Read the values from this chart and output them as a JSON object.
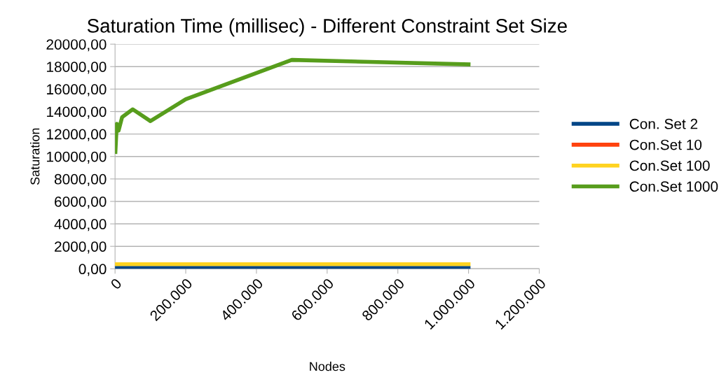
{
  "chart_data": {
    "type": "line",
    "title": "Saturation Time (millisec) - Different Constraint Set Size",
    "xlabel": "Nodes",
    "ylabel": "Saturation",
    "x": [
      1000,
      5000,
      10000,
      20000,
      50000,
      100000,
      200000,
      500000,
      1000000
    ],
    "series": [
      {
        "name": "Con. Set 2",
        "color": "#004586",
        "values": [
          60,
          60,
          60,
          60,
          60,
          60,
          60,
          60,
          60
        ]
      },
      {
        "name": "Con.Set 10",
        "color": "#ff420e",
        "values": [
          null,
          null,
          null,
          null,
          null,
          null,
          null,
          null,
          null
        ]
      },
      {
        "name": "Con.Set 100",
        "color": "#ffd320",
        "values": [
          400,
          400,
          400,
          400,
          400,
          400,
          400,
          400,
          400
        ]
      },
      {
        "name": "Con.Set 1000",
        "color": "#579d1c",
        "values": [
          10400,
          12900,
          12300,
          13500,
          14200,
          13150,
          15100,
          18600,
          18200
        ]
      }
    ],
    "xlim": [
      0,
      1200000
    ],
    "xticks": [
      {
        "value": 0,
        "label": "0"
      },
      {
        "value": 200000,
        "label": "200.000"
      },
      {
        "value": 400000,
        "label": "400.000"
      },
      {
        "value": 600000,
        "label": "600.000"
      },
      {
        "value": 800000,
        "label": "800.000"
      },
      {
        "value": 1000000,
        "label": "1.000.000"
      },
      {
        "value": 1200000,
        "label": "1.200.000"
      }
    ],
    "ylim": [
      0,
      20000
    ],
    "yticks": [
      {
        "value": 0,
        "label": "0,00"
      },
      {
        "value": 2000,
        "label": "2000,00"
      },
      {
        "value": 4000,
        "label": "4000,00"
      },
      {
        "value": 6000,
        "label": "6000,00"
      },
      {
        "value": 8000,
        "label": "8000,00"
      },
      {
        "value": 10000,
        "label": "10000,00"
      },
      {
        "value": 12000,
        "label": "12000,00"
      },
      {
        "value": 14000,
        "label": "14000,00"
      },
      {
        "value": 16000,
        "label": "16000,00"
      },
      {
        "value": 18000,
        "label": "18000,00"
      },
      {
        "value": 20000,
        "label": "20000,00"
      }
    ],
    "grid": "y",
    "legend": "right",
    "marker": "none",
    "line_style": "solid"
  }
}
